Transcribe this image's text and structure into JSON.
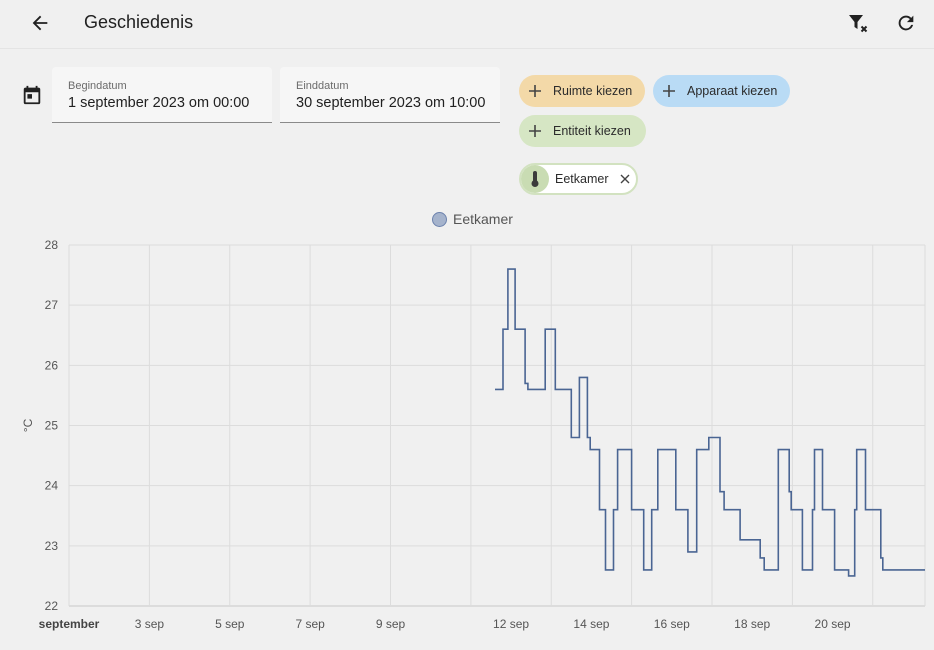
{
  "header": {
    "title": "Geschiedenis"
  },
  "date_range": {
    "start_label": "Begindatum",
    "start_value": "1 september 2023 om 00:00",
    "end_label": "Einddatum",
    "end_value": "30 september 2023 om 10:00"
  },
  "pickers": {
    "room_label": "Ruimte kiezen",
    "device_label": "Apparaat kiezen",
    "entity_label": "Entiteit kiezen"
  },
  "selected": {
    "entity_name": "Eetkamer"
  },
  "colors": {
    "series": "#4a6593",
    "room_chip": "#f3d9a8",
    "device_chip": "#b9dbf5",
    "entity_chip": "#d6e6c4"
  },
  "chart_data": {
    "type": "line",
    "step": true,
    "ylabel": "°C",
    "ylim": [
      22,
      28
    ],
    "yticks": [
      22,
      23,
      24,
      25,
      26,
      27,
      28
    ],
    "xlim": [
      1,
      22.3
    ],
    "xticks": [
      {
        "day": 1,
        "label": "september",
        "bold": true
      },
      {
        "day": 3,
        "label": "3 sep"
      },
      {
        "day": 5,
        "label": "5 sep"
      },
      {
        "day": 7,
        "label": "7 sep"
      },
      {
        "day": 9,
        "label": "9 sep"
      },
      {
        "day": 12,
        "label": "12 sep"
      },
      {
        "day": 14,
        "label": "14 sep"
      },
      {
        "day": 16,
        "label": "16 sep"
      },
      {
        "day": 18,
        "label": "18 sep"
      },
      {
        "day": 20,
        "label": "20 sep"
      }
    ],
    "grid": true,
    "legend": "top-center",
    "series": [
      {
        "name": "Eetkamer",
        "points": [
          [
            11.6,
            25.6
          ],
          [
            11.8,
            26.6
          ],
          [
            11.92,
            27.6
          ],
          [
            12.1,
            26.6
          ],
          [
            12.35,
            25.7
          ],
          [
            12.42,
            25.6
          ],
          [
            12.85,
            26.6
          ],
          [
            13.1,
            25.6
          ],
          [
            13.5,
            24.8
          ],
          [
            13.7,
            25.8
          ],
          [
            13.9,
            24.8
          ],
          [
            13.97,
            24.6
          ],
          [
            14.2,
            23.6
          ],
          [
            14.35,
            22.6
          ],
          [
            14.55,
            23.6
          ],
          [
            14.65,
            24.6
          ],
          [
            15.0,
            23.6
          ],
          [
            15.3,
            22.6
          ],
          [
            15.5,
            23.6
          ],
          [
            15.65,
            24.6
          ],
          [
            16.1,
            23.6
          ],
          [
            16.4,
            22.9
          ],
          [
            16.62,
            24.6
          ],
          [
            16.92,
            24.8
          ],
          [
            17.2,
            23.9
          ],
          [
            17.3,
            23.6
          ],
          [
            17.7,
            23.1
          ],
          [
            18.2,
            22.8
          ],
          [
            18.3,
            22.6
          ],
          [
            18.65,
            24.6
          ],
          [
            18.92,
            23.9
          ],
          [
            18.97,
            23.6
          ],
          [
            19.25,
            22.6
          ],
          [
            19.5,
            23.6
          ],
          [
            19.55,
            24.6
          ],
          [
            19.75,
            23.6
          ],
          [
            20.05,
            22.6
          ],
          [
            20.4,
            22.5
          ],
          [
            20.55,
            23.6
          ],
          [
            20.6,
            24.6
          ],
          [
            20.82,
            23.6
          ],
          [
            21.2,
            22.8
          ],
          [
            21.25,
            22.6
          ],
          [
            21.4,
            22.6
          ]
        ]
      }
    ]
  }
}
